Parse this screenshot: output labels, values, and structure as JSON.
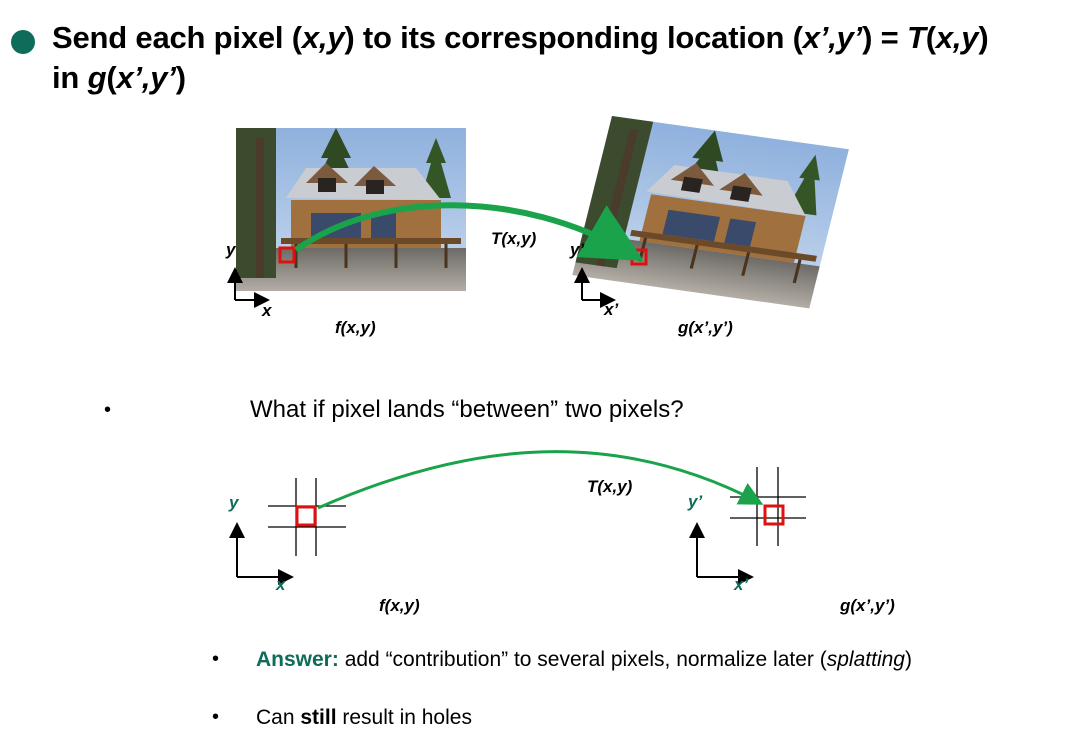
{
  "title": {
    "line1_a": "Send each pixel (",
    "line1_xy": "x,y",
    "line1_b": ") to its corresponding location (",
    "line1_xpyp": "x’,y’",
    "line1_c": ") = ",
    "line1_T": "T",
    "line1_d": "(",
    "line1_xy2": "x,y",
    "line1_e": ")",
    "line2_a": "in ",
    "line2_g": "g",
    "line2_b": "(",
    "line2_xpyp": "x’,y’",
    "line2_c": ")"
  },
  "top_diagram": {
    "src_y": "y",
    "src_x": "x",
    "src_caption": "f(x,y)",
    "transform_label": "T(x,y)",
    "dst_y": "y’",
    "dst_x": "x’",
    "dst_caption": "g(x’,y’)"
  },
  "question": "What if pixel lands “between” two pixels?",
  "bottom_diagram": {
    "src_y": "y",
    "src_x": "x",
    "src_caption": "f(x,y)",
    "transform_label": "T(x,y)",
    "dst_y": "y’",
    "dst_x": "x’",
    "dst_caption": "g(x’,y’)"
  },
  "answers": {
    "answer_label": "Answer:",
    "answer_text": " add “contribution” to several pixels, normalize later (",
    "answer_italic": "splatting",
    "answer_end": ")",
    "holes_a": "Can ",
    "holes_bold": "still",
    "holes_b": " result in holes"
  },
  "colors": {
    "accent": "#0f6b5a",
    "arrow": "#1aa34a",
    "marker": "#e01010"
  },
  "icons": [
    "bullet-dot",
    "house-photo",
    "warped-house-photo"
  ]
}
